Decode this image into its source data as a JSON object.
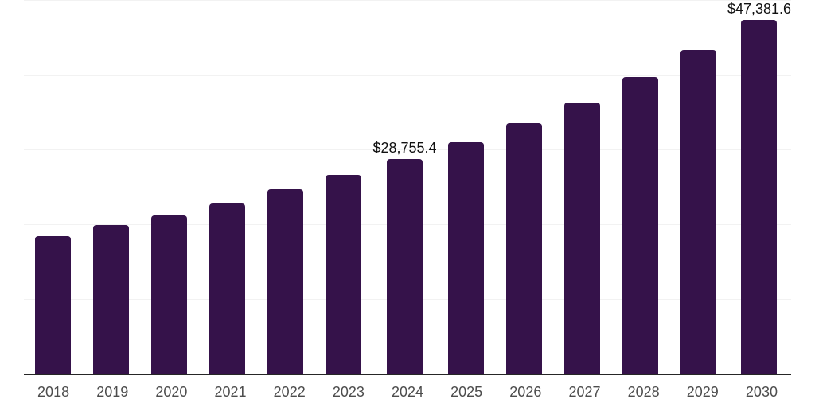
{
  "colors": {
    "background": "#FFFFFF",
    "bar": "#35124A",
    "axis_line": "#262626",
    "gridline": "#F2F2F2",
    "tick_label": "#4D4D4D",
    "data_label": "#111111"
  },
  "chart_data": {
    "type": "bar",
    "title": "",
    "xlabel": "",
    "ylabel": "",
    "categories": [
      "2018",
      "2019",
      "2020",
      "2021",
      "2022",
      "2023",
      "2024",
      "2025",
      "2026",
      "2027",
      "2028",
      "2029",
      "2030"
    ],
    "values": [
      18400,
      19900,
      21150,
      22800,
      24700,
      26600,
      28755.4,
      31000,
      33550,
      36250,
      39650,
      43250,
      47381.6
    ],
    "bar_labels": [
      "",
      "",
      "",
      "",
      "",
      "",
      "$28,755.4",
      "",
      "",
      "",
      "",
      "",
      "$47,381.6"
    ],
    "labeled_points": [
      {
        "category": "2024",
        "label": "$28,755.4",
        "value": 28755.4
      },
      {
        "category": "2030",
        "label": "$47,381.6",
        "value": 47381.6
      }
    ],
    "ylim": [
      0,
      50000
    ],
    "grid_values": [
      10000,
      20000,
      30000,
      40000,
      50000
    ],
    "grid": "horizontal",
    "y_axis_tick_labels": "none",
    "legend": "none"
  }
}
